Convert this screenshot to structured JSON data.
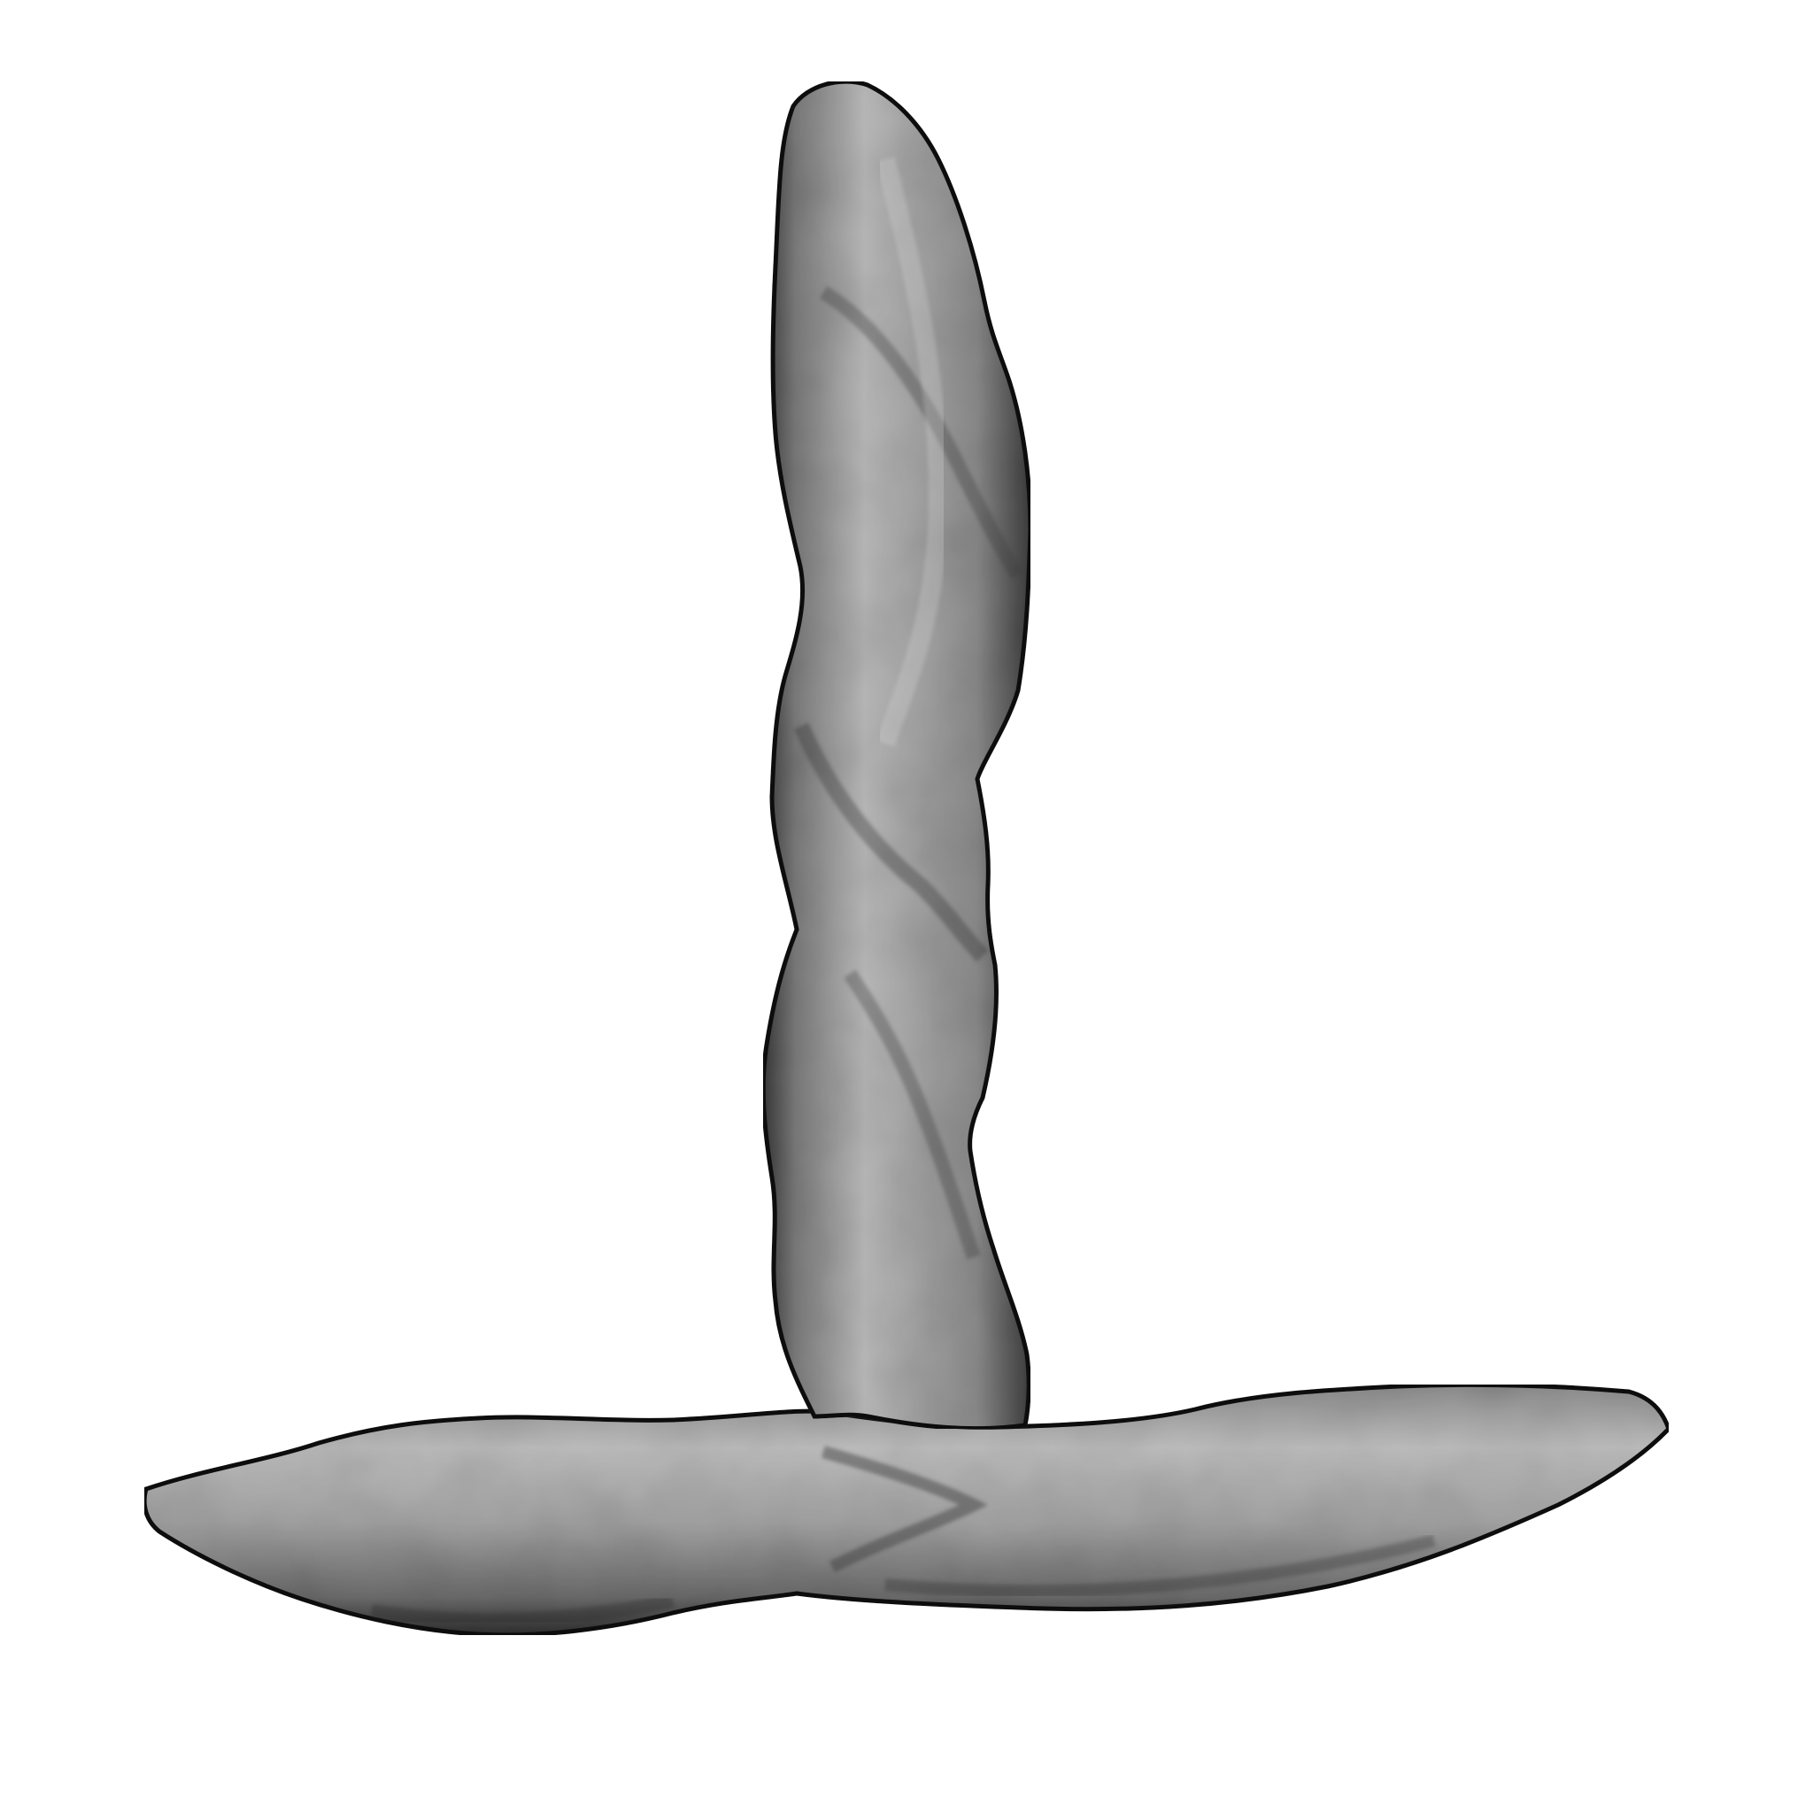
{
  "image": {
    "subject": "twisted-filament-3d-surface-render",
    "background_color": "#ffffff",
    "surface_colors": {
      "highlight": "#c8c8c8",
      "midtone": "#9a9a9a",
      "shadow": "#3a3a3a",
      "edge": "#111111"
    }
  }
}
